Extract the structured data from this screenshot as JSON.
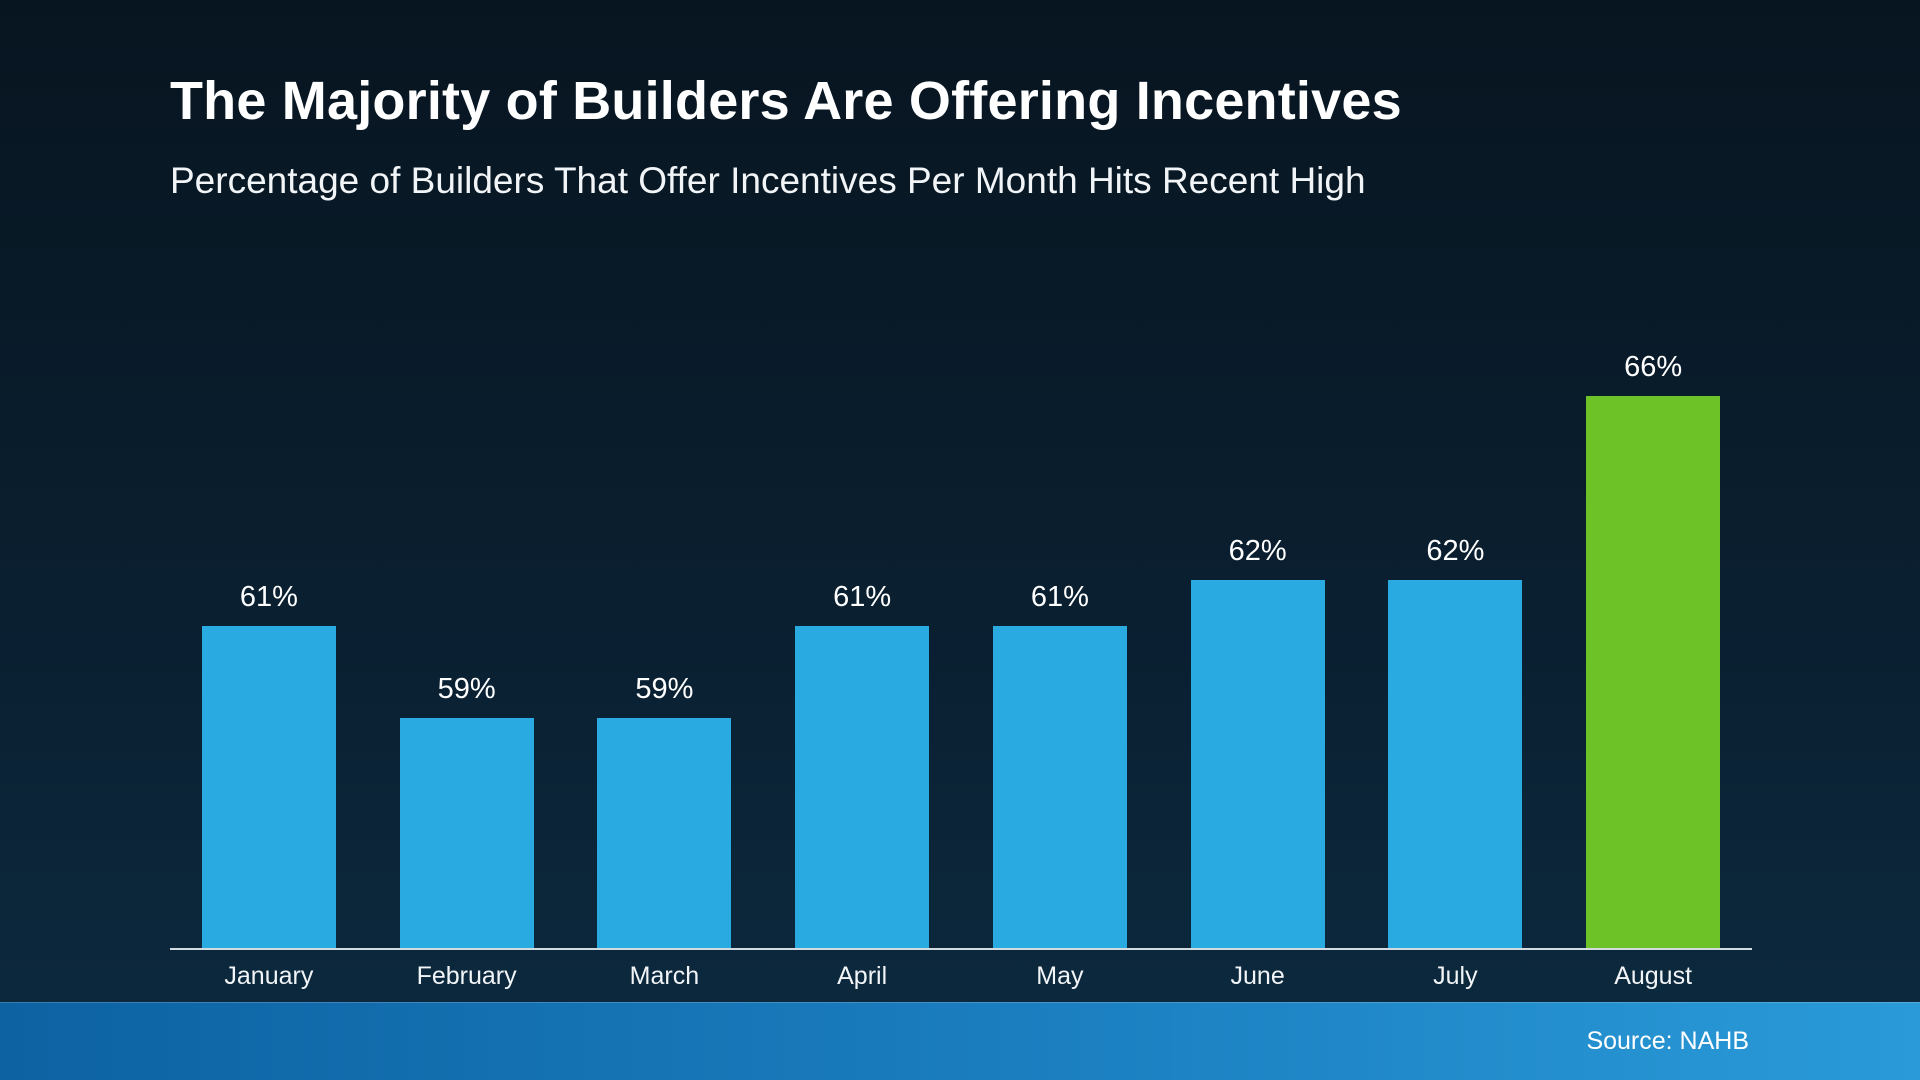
{
  "header": {
    "title": "The Majority of Builders Are Offering Incentives",
    "subtitle": "Percentage of Builders That Offer Incentives Per Month Hits Recent High"
  },
  "footer": {
    "source": "Source: NAHB"
  },
  "chart_data": {
    "type": "bar",
    "title": "The Majority of Builders Are Offering Incentives",
    "subtitle": "Percentage of Builders That Offer Incentives Per Month Hits Recent High",
    "categories": [
      "January",
      "February",
      "March",
      "April",
      "May",
      "June",
      "July",
      "August"
    ],
    "values": [
      61,
      59,
      59,
      61,
      61,
      62,
      62,
      66
    ],
    "value_suffix": "%",
    "highlight_index": 7,
    "colors": {
      "bar": "#29abe2",
      "highlight": "#6cc226",
      "background_top": "#071520",
      "background_bottom": "#0d2a40",
      "footer_left": "#0d62a2",
      "footer_right": "#2a9ad8",
      "text": "#ffffff",
      "axis_line": "#d2dbe0"
    },
    "ylim": [
      54,
      66
    ],
    "xlabel": "",
    "ylabel": "",
    "grid": false,
    "legend": "none",
    "data_labels": true,
    "source": "Source: NAHB"
  }
}
